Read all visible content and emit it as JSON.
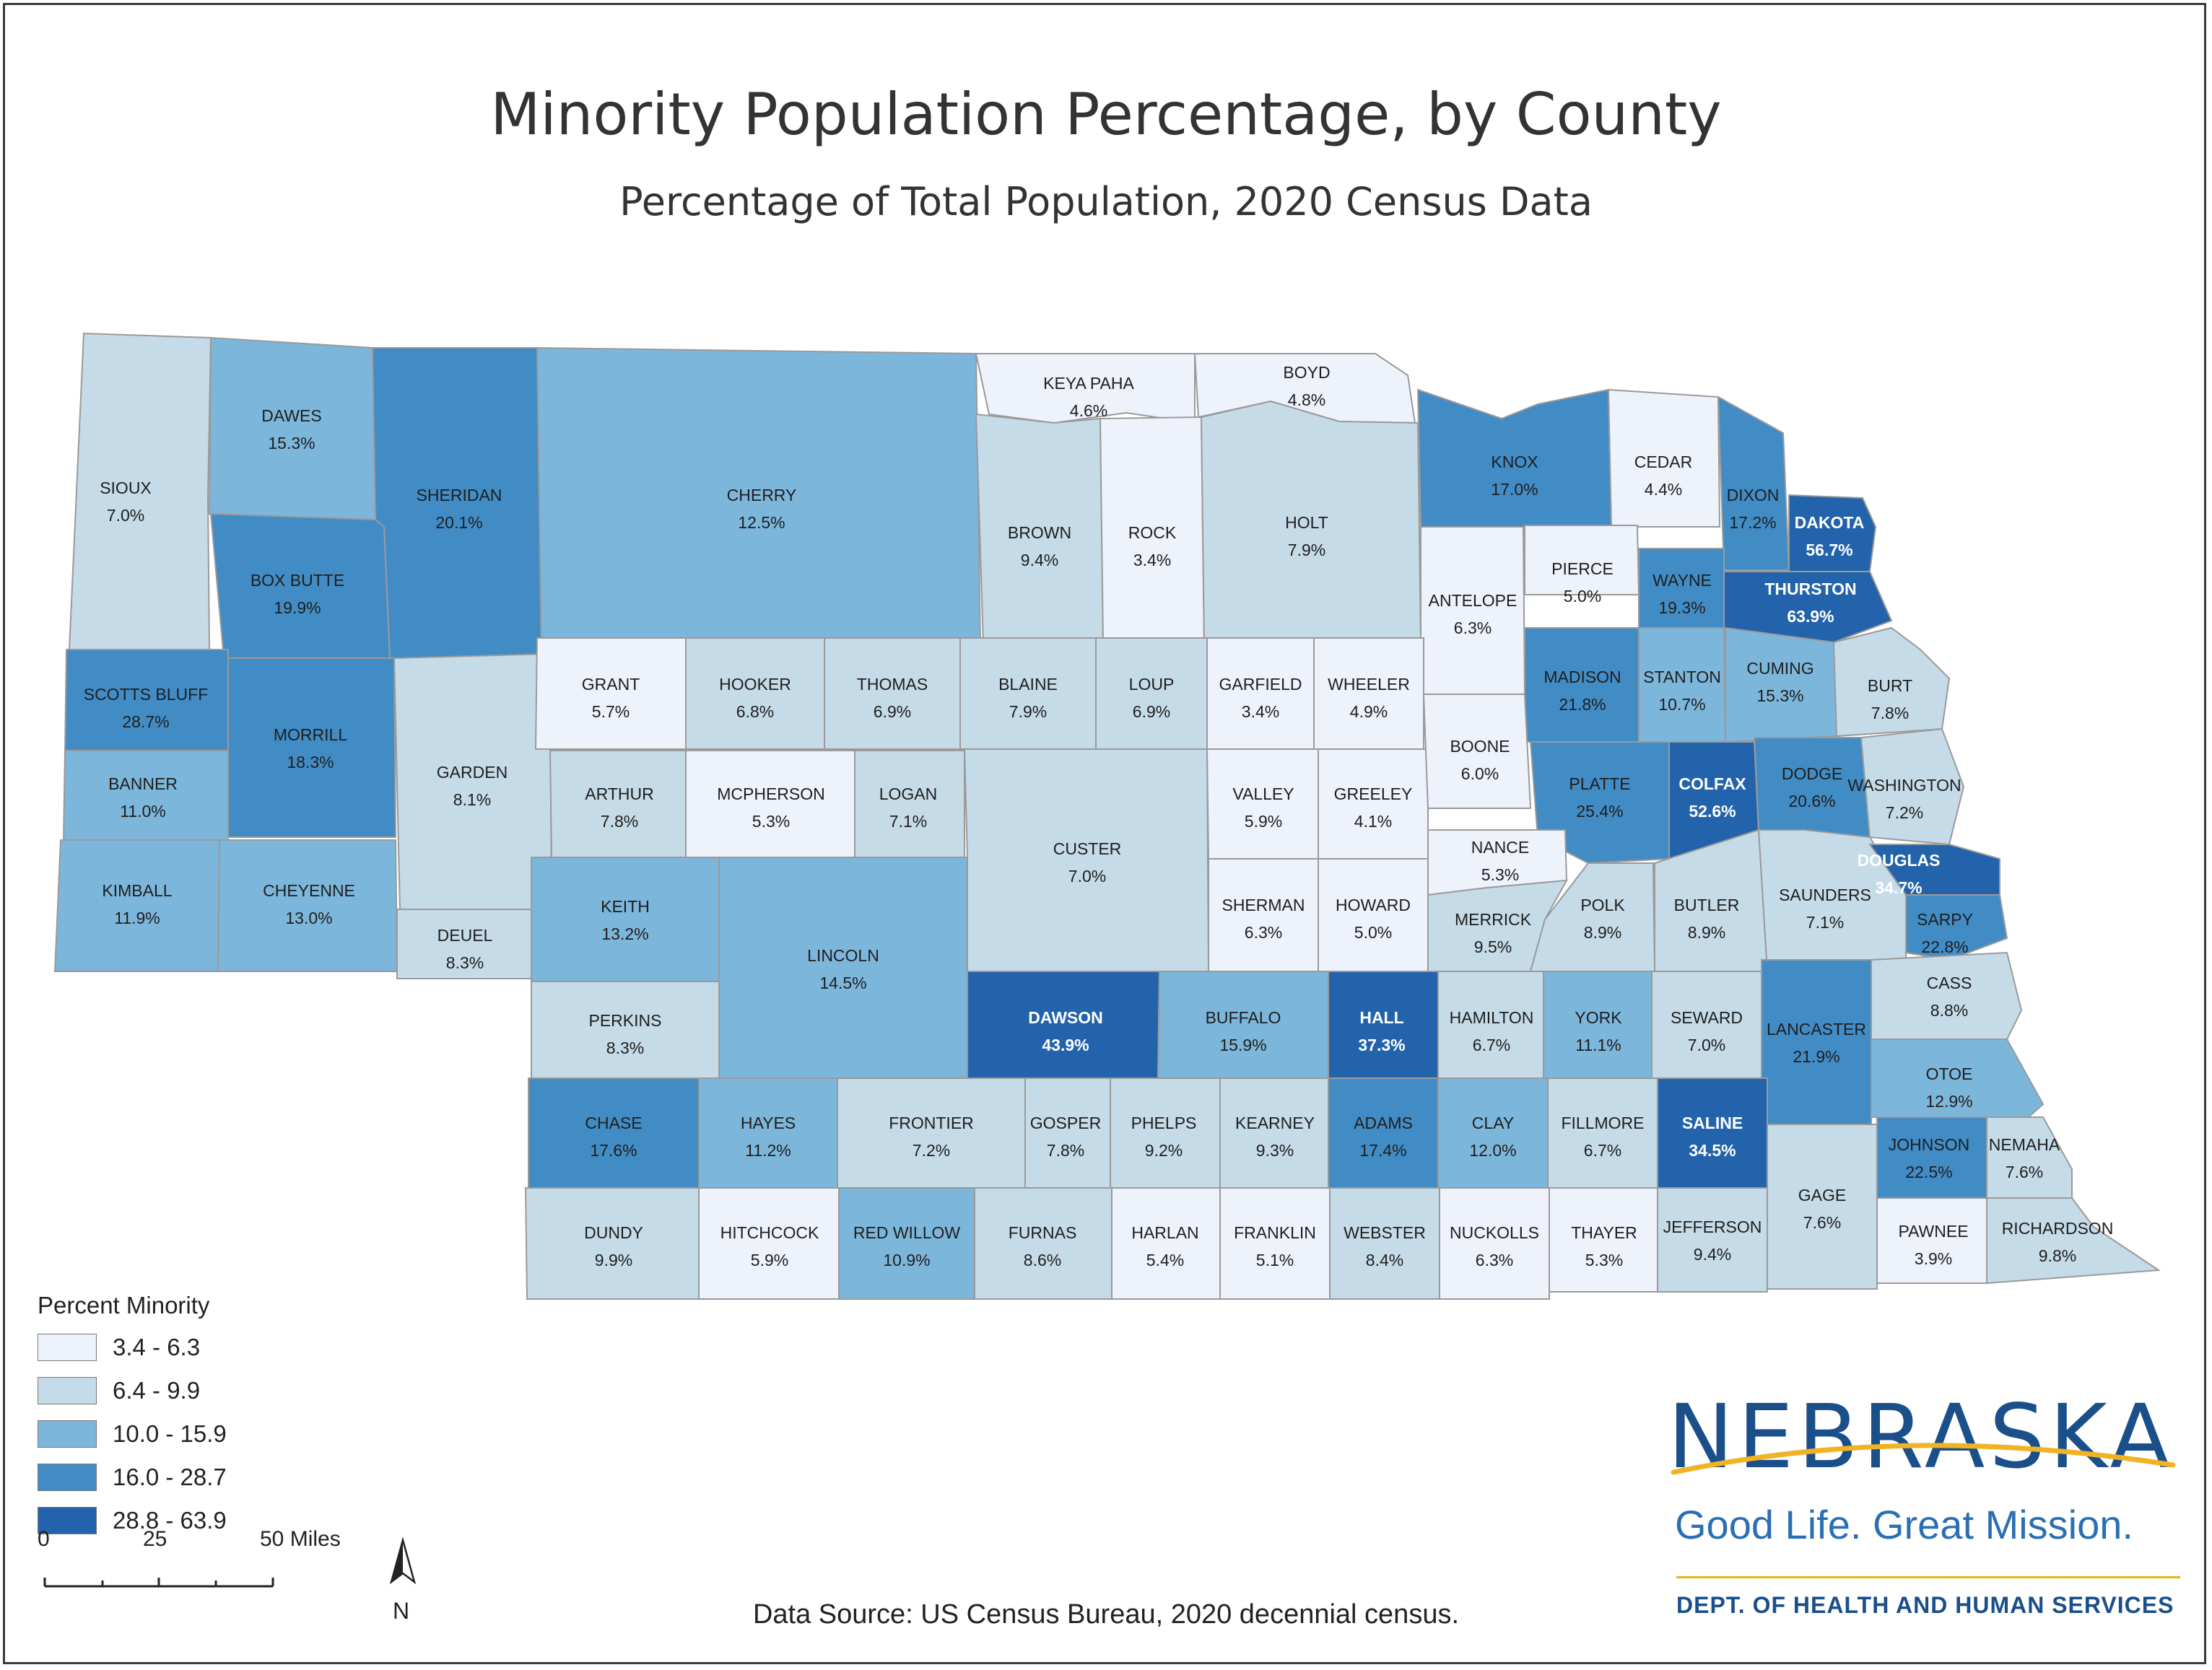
{
  "title": "Minority Population Percentage, by County",
  "subtitle": "Percentage of Total Population, 2020 Census Data",
  "legend": {
    "title": "Percent Minority",
    "classes": [
      {
        "label": "3.4 - 6.3",
        "color": "#eef2fb"
      },
      {
        "label": "6.4 - 9.9",
        "color": "#c6dbe8"
      },
      {
        "label": "10.0 - 15.9",
        "color": "#7db6db"
      },
      {
        "label": "16.0 - 28.7",
        "color": "#428cc6"
      },
      {
        "label": "28.8 - 63.9",
        "color": "#2363ab"
      }
    ]
  },
  "scale": {
    "zero": "0",
    "mid": "25",
    "end": "50 Miles"
  },
  "north_label": "N",
  "source": "Data Source: US Census Bureau, 2020 decennial census.",
  "logo": {
    "wordmark": "NEBRASKA",
    "tagline": "Good Life. Great Mission.",
    "department": "DEPT. OF HEALTH AND HUMAN SERVICES"
  },
  "counties": [
    {
      "name": "SIOUX",
      "value": "7.0%",
      "class": 1
    },
    {
      "name": "DAWES",
      "value": "15.3%",
      "class": 2
    },
    {
      "name": "SHERIDAN",
      "value": "20.1%",
      "class": 3
    },
    {
      "name": "CHERRY",
      "value": "12.5%",
      "class": 2
    },
    {
      "name": "KEYA PAHA",
      "value": "4.6%",
      "class": 0
    },
    {
      "name": "BOYD",
      "value": "4.8%",
      "class": 0
    },
    {
      "name": "BROWN",
      "value": "9.4%",
      "class": 1
    },
    {
      "name": "ROCK",
      "value": "3.4%",
      "class": 0
    },
    {
      "name": "HOLT",
      "value": "7.9%",
      "class": 1
    },
    {
      "name": "KNOX",
      "value": "17.0%",
      "class": 3
    },
    {
      "name": "CEDAR",
      "value": "4.4%",
      "class": 0
    },
    {
      "name": "DIXON",
      "value": "17.2%",
      "class": 3
    },
    {
      "name": "DAKOTA",
      "value": "56.7%",
      "class": 4
    },
    {
      "name": "BOX BUTTE",
      "value": "19.9%",
      "class": 3
    },
    {
      "name": "ANTELOPE",
      "value": "6.3%",
      "class": 0
    },
    {
      "name": "PIERCE",
      "value": "5.0%",
      "class": 0
    },
    {
      "name": "WAYNE",
      "value": "19.3%",
      "class": 3
    },
    {
      "name": "THURSTON",
      "value": "63.9%",
      "class": 4
    },
    {
      "name": "SCOTTS BLUFF",
      "value": "28.7%",
      "class": 3
    },
    {
      "name": "MORRILL",
      "value": "18.3%",
      "class": 3
    },
    {
      "name": "GARDEN",
      "value": "8.1%",
      "class": 1
    },
    {
      "name": "GRANT",
      "value": "5.7%",
      "class": 0
    },
    {
      "name": "HOOKER",
      "value": "6.8%",
      "class": 1
    },
    {
      "name": "THOMAS",
      "value": "6.9%",
      "class": 1
    },
    {
      "name": "BLAINE",
      "value": "7.9%",
      "class": 1
    },
    {
      "name": "LOUP",
      "value": "6.9%",
      "class": 1
    },
    {
      "name": "GARFIELD",
      "value": "3.4%",
      "class": 0
    },
    {
      "name": "WHEELER",
      "value": "4.9%",
      "class": 0
    },
    {
      "name": "MADISON",
      "value": "21.8%",
      "class": 3
    },
    {
      "name": "STANTON",
      "value": "10.7%",
      "class": 2
    },
    {
      "name": "CUMING",
      "value": "15.3%",
      "class": 2
    },
    {
      "name": "BURT",
      "value": "7.8%",
      "class": 1
    },
    {
      "name": "BANNER",
      "value": "11.0%",
      "class": 2
    },
    {
      "name": "ARTHUR",
      "value": "7.8%",
      "class": 1
    },
    {
      "name": "MCPHERSON",
      "value": "5.3%",
      "class": 0
    },
    {
      "name": "LOGAN",
      "value": "7.1%",
      "class": 1
    },
    {
      "name": "CUSTER",
      "value": "7.0%",
      "class": 1
    },
    {
      "name": "VALLEY",
      "value": "5.9%",
      "class": 0
    },
    {
      "name": "GREELEY",
      "value": "4.1%",
      "class": 0
    },
    {
      "name": "BOONE",
      "value": "6.0%",
      "class": 0
    },
    {
      "name": "PLATTE",
      "value": "25.4%",
      "class": 3
    },
    {
      "name": "COLFAX",
      "value": "52.6%",
      "class": 4
    },
    {
      "name": "DODGE",
      "value": "20.6%",
      "class": 3
    },
    {
      "name": "WASHINGTON",
      "value": "7.2%",
      "class": 1
    },
    {
      "name": "KIMBALL",
      "value": "11.9%",
      "class": 2
    },
    {
      "name": "CHEYENNE",
      "value": "13.0%",
      "class": 2
    },
    {
      "name": "DEUEL",
      "value": "8.3%",
      "class": 1
    },
    {
      "name": "KEITH",
      "value": "13.2%",
      "class": 2
    },
    {
      "name": "LINCOLN",
      "value": "14.5%",
      "class": 2
    },
    {
      "name": "SHERMAN",
      "value": "6.3%",
      "class": 0
    },
    {
      "name": "HOWARD",
      "value": "5.0%",
      "class": 0
    },
    {
      "name": "NANCE",
      "value": "5.3%",
      "class": 0
    },
    {
      "name": "MERRICK",
      "value": "9.5%",
      "class": 1
    },
    {
      "name": "POLK",
      "value": "8.9%",
      "class": 1
    },
    {
      "name": "BUTLER",
      "value": "8.9%",
      "class": 1
    },
    {
      "name": "SAUNDERS",
      "value": "7.1%",
      "class": 1
    },
    {
      "name": "DOUGLAS",
      "value": "34.7%",
      "class": 4
    },
    {
      "name": "SARPY",
      "value": "22.8%",
      "class": 3
    },
    {
      "name": "PERKINS",
      "value": "8.3%",
      "class": 1
    },
    {
      "name": "DAWSON",
      "value": "43.9%",
      "class": 4
    },
    {
      "name": "BUFFALO",
      "value": "15.9%",
      "class": 2
    },
    {
      "name": "HALL",
      "value": "37.3%",
      "class": 4
    },
    {
      "name": "HAMILTON",
      "value": "6.7%",
      "class": 1
    },
    {
      "name": "YORK",
      "value": "11.1%",
      "class": 2
    },
    {
      "name": "SEWARD",
      "value": "7.0%",
      "class": 1
    },
    {
      "name": "LANCASTER",
      "value": "21.9%",
      "class": 3
    },
    {
      "name": "CASS",
      "value": "8.8%",
      "class": 1
    },
    {
      "name": "OTOE",
      "value": "12.9%",
      "class": 2
    },
    {
      "name": "CHASE",
      "value": "17.6%",
      "class": 3
    },
    {
      "name": "HAYES",
      "value": "11.2%",
      "class": 2
    },
    {
      "name": "FRONTIER",
      "value": "7.2%",
      "class": 1
    },
    {
      "name": "GOSPER",
      "value": "7.8%",
      "class": 1
    },
    {
      "name": "PHELPS",
      "value": "9.2%",
      "class": 1
    },
    {
      "name": "KEARNEY",
      "value": "9.3%",
      "class": 1
    },
    {
      "name": "ADAMS",
      "value": "17.4%",
      "class": 3
    },
    {
      "name": "CLAY",
      "value": "12.0%",
      "class": 2
    },
    {
      "name": "FILLMORE",
      "value": "6.7%",
      "class": 1
    },
    {
      "name": "SALINE",
      "value": "34.5%",
      "class": 4
    },
    {
      "name": "GAGE",
      "value": "7.6%",
      "class": 1
    },
    {
      "name": "JOHNSON",
      "value": "22.5%",
      "class": 3
    },
    {
      "name": "NEMAHA",
      "value": "7.6%",
      "class": 1
    },
    {
      "name": "DUNDY",
      "value": "9.9%",
      "class": 1
    },
    {
      "name": "HITCHCOCK",
      "value": "5.9%",
      "class": 0
    },
    {
      "name": "RED WILLOW",
      "value": "10.9%",
      "class": 2
    },
    {
      "name": "FURNAS",
      "value": "8.6%",
      "class": 1
    },
    {
      "name": "HARLAN",
      "value": "5.4%",
      "class": 0
    },
    {
      "name": "FRANKLIN",
      "value": "5.1%",
      "class": 0
    },
    {
      "name": "WEBSTER",
      "value": "8.4%",
      "class": 1
    },
    {
      "name": "NUCKOLLS",
      "value": "6.3%",
      "class": 0
    },
    {
      "name": "THAYER",
      "value": "5.3%",
      "class": 0
    },
    {
      "name": "JEFFERSON",
      "value": "9.4%",
      "class": 1
    },
    {
      "name": "PAWNEE",
      "value": "3.9%",
      "class": 0
    },
    {
      "name": "RICHARDSON",
      "value": "9.8%",
      "class": 1
    }
  ]
}
